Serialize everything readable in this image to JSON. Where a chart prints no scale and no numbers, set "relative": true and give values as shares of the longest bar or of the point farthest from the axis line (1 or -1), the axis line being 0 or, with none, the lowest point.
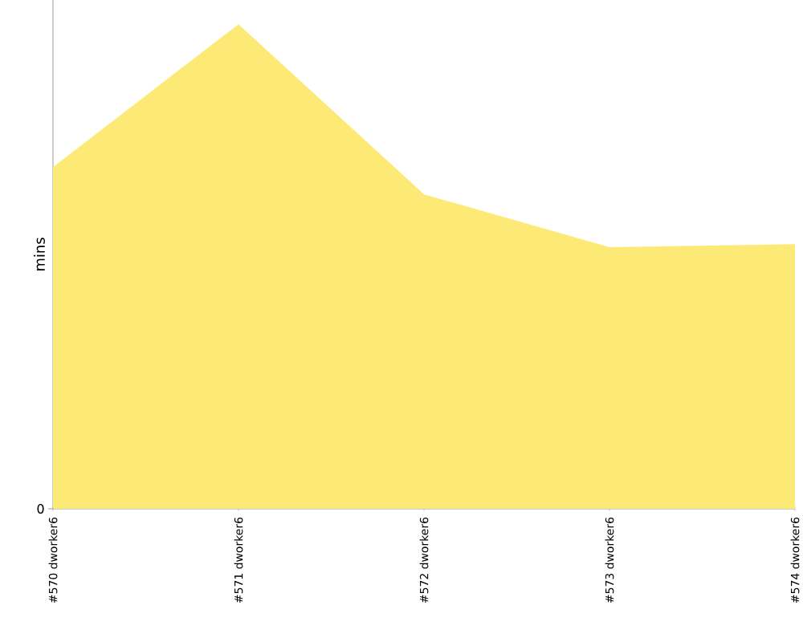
{
  "chart_data": {
    "type": "area",
    "ylabel": "mins",
    "relative": true,
    "annotations": [
      "0"
    ],
    "categories": [
      "#570 dworker6",
      "#571 dworker6",
      "#572 dworker6",
      "#573 dworker6",
      "#574 dworker6"
    ],
    "color": "#fdea76",
    "values": [
      0.705,
      1,
      0.649,
      0.54,
      0.546
    ]
  }
}
